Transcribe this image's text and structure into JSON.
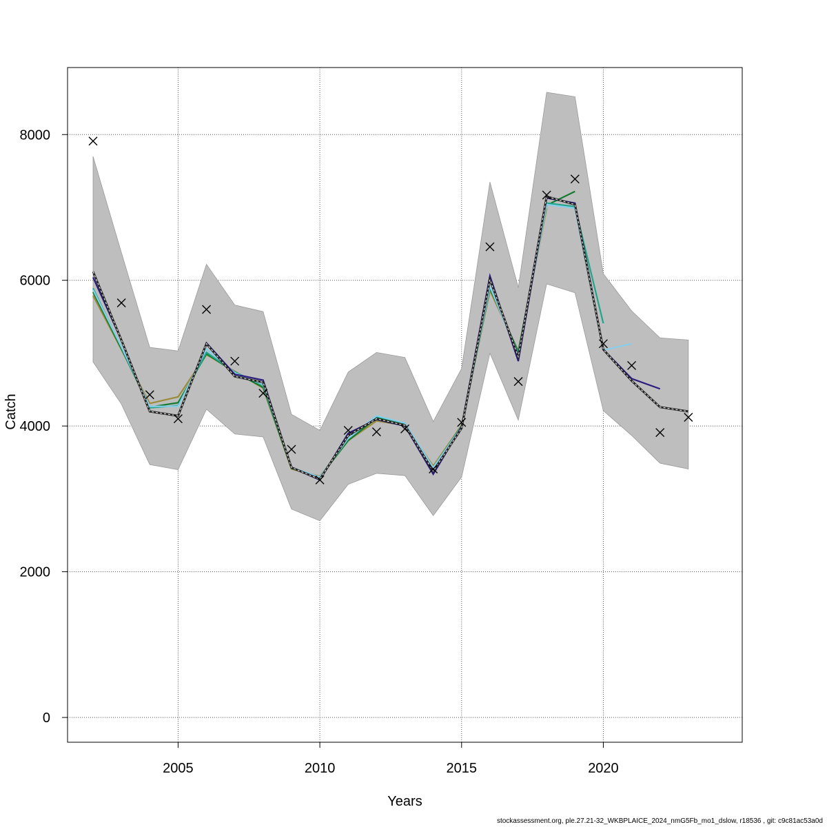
{
  "chart_data": {
    "type": "line",
    "xlabel": "Years",
    "ylabel": "Catch",
    "xlim": [
      2001.1,
      2024.9
    ],
    "ylim": [
      -340,
      8920
    ],
    "x_ticks": [
      2005,
      2010,
      2015,
      2020
    ],
    "x_tick_labels": [
      "2005",
      "2010",
      "2015",
      "2020"
    ],
    "y_ticks": [
      0,
      2000,
      4000,
      6000,
      8000
    ],
    "y_tick_labels": [
      "0",
      "2000",
      "4000",
      "6000",
      "8000"
    ],
    "grid": true,
    "band": {
      "color": "#bebebe",
      "x": [
        2002,
        2003,
        2004,
        2005,
        2006,
        2007,
        2008,
        2009,
        2010,
        2011,
        2012,
        2013,
        2014,
        2015,
        2016,
        2017,
        2018,
        2019,
        2020,
        2021,
        2022,
        2023
      ],
      "lower": [
        4880,
        4300,
        3470,
        3400,
        4230,
        3890,
        3850,
        2860,
        2700,
        3200,
        3350,
        3320,
        2770,
        3300,
        5000,
        4080,
        5950,
        5830,
        4210,
        3870,
        3490,
        3410
      ],
      "upper": [
        7700,
        6380,
        5080,
        5030,
        6220,
        5660,
        5570,
        4160,
        3940,
        4740,
        5010,
        4940,
        4060,
        4790,
        7350,
        5900,
        8580,
        8520,
        6090,
        5580,
        5210,
        5180
      ]
    },
    "series": [
      {
        "color": "#222222",
        "dashed": true,
        "x": [
          2002,
          2003,
          2004,
          2005,
          2006,
          2007,
          2008,
          2009,
          2010,
          2011,
          2012,
          2013,
          2014,
          2015,
          2016,
          2017,
          2018,
          2019,
          2020,
          2021,
          2022,
          2023
        ],
        "values": [
          6120,
          5180,
          4200,
          4140,
          5130,
          4680,
          4600,
          3430,
          3270,
          3870,
          4100,
          4010,
          3380,
          3970,
          6010,
          4950,
          7150,
          7040,
          5050,
          4620,
          4260,
          4200
        ]
      },
      {
        "color": "#2b1b7e",
        "x": [
          2002,
          2003,
          2004,
          2005,
          2006,
          2007,
          2008,
          2009,
          2010,
          2011,
          2012,
          2013,
          2014,
          2015,
          2016,
          2017,
          2018,
          2019,
          2020,
          2021,
          2022
        ],
        "values": [
          6040,
          5180,
          4200,
          4140,
          5140,
          4710,
          4630,
          3430,
          3260,
          3900,
          4090,
          4000,
          3340,
          3990,
          6060,
          4890,
          7130,
          7060,
          5050,
          4650,
          4510
        ]
      },
      {
        "color": "#87ceeb",
        "x": [
          2002,
          2003,
          2004,
          2005,
          2006,
          2007,
          2008,
          2009,
          2010,
          2011,
          2012,
          2013,
          2014,
          2015,
          2016,
          2017,
          2018,
          2019,
          2020,
          2021
        ],
        "values": [
          5870,
          5090,
          4270,
          4270,
          5060,
          4730,
          4570,
          3430,
          3300,
          3830,
          4140,
          4040,
          3430,
          3990,
          5920,
          4970,
          7040,
          6990,
          5040,
          5130
        ]
      },
      {
        "color": "#20a48a",
        "x": [
          2002,
          2003,
          2004,
          2005,
          2006,
          2007,
          2008,
          2009,
          2010,
          2011,
          2012,
          2013,
          2014,
          2015,
          2016,
          2017,
          2018,
          2019,
          2020
        ],
        "values": [
          5890,
          5080,
          4250,
          4280,
          5010,
          4740,
          4560,
          3430,
          3290,
          3830,
          4130,
          4040,
          3420,
          3990,
          5910,
          5000,
          7060,
          7010,
          5410
        ]
      },
      {
        "color": "#137b2e",
        "x": [
          2002,
          2003,
          2004,
          2005,
          2006,
          2007,
          2008,
          2009,
          2010,
          2011,
          2012,
          2013,
          2014,
          2015,
          2016,
          2017,
          2018,
          2019
        ],
        "values": [
          5840,
          5060,
          4260,
          4320,
          4990,
          4740,
          4530,
          3420,
          3300,
          3800,
          4110,
          4030,
          3430,
          4000,
          5890,
          5020,
          7030,
          7220
        ]
      },
      {
        "color": "#9b8a3a",
        "x": [
          2002,
          2003,
          2004,
          2005,
          2006,
          2007,
          2008,
          2009,
          2010,
          2011,
          2012,
          2013,
          2014,
          2015,
          2016,
          2017,
          2018
        ],
        "values": [
          5790,
          5050,
          4310,
          4400,
          4980,
          4750,
          4520,
          3410,
          3310,
          3800,
          4070,
          4010,
          3450,
          4010,
          5860,
          5030,
          6990
        ]
      }
    ],
    "observations": {
      "marker": "x",
      "x": [
        2002,
        2003,
        2004,
        2005,
        2006,
        2007,
        2008,
        2009,
        2010,
        2011,
        2012,
        2013,
        2014,
        2015,
        2016,
        2017,
        2018,
        2019,
        2020,
        2021,
        2022,
        2023
      ],
      "values": [
        7910,
        5690,
        4430,
        4100,
        5600,
        4890,
        4450,
        3680,
        3260,
        3940,
        3920,
        3960,
        3410,
        4050,
        6460,
        4610,
        7170,
        7390,
        5130,
        4830,
        3910,
        4120
      ]
    }
  },
  "footer": {
    "credit": "stockassessment.org, ple.27.21-32_WKBPLAICE_2024_nmG5Fb_mo1_dslow, r18536 , git: c9c81ac53a0d"
  }
}
